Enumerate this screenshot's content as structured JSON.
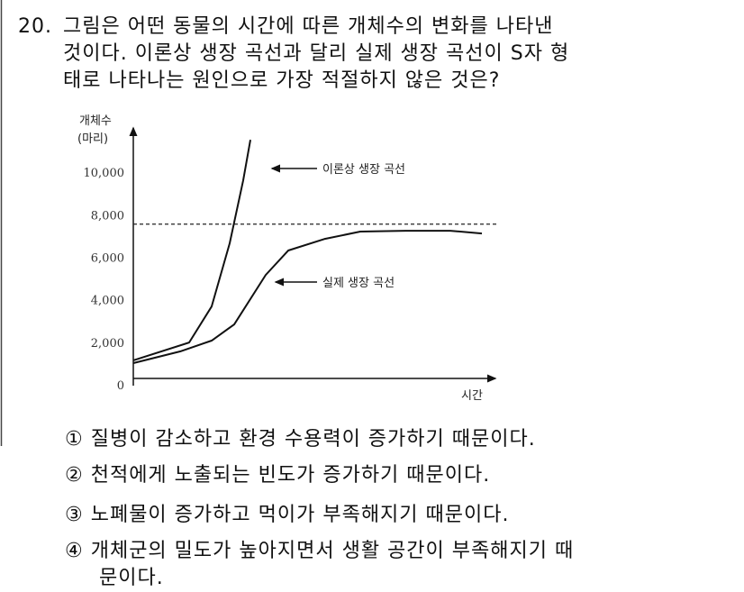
{
  "question": {
    "number": "20.",
    "lines": [
      "그림은 어떤 동물의 시간에 따른 개체수의 변화를 나타낸",
      "것이다. 이론상 생장 곡선과 달리 실제 생장 곡선이 S자 형",
      "태로 나타나는 원인으로 가장 적절하지 않은 것은?"
    ]
  },
  "chart_data": {
    "type": "line",
    "y_label": [
      "개체수",
      "(마리)"
    ],
    "x_label": "시간",
    "ylim": [
      0,
      12000
    ],
    "yticks": [
      0,
      {
        "value": 2000,
        "label": "2,000"
      },
      {
        "value": 4000,
        "label": "4,000"
      },
      {
        "value": 6000,
        "label": "6,000"
      },
      {
        "value": 8000,
        "label": "8,000"
      },
      {
        "value": 10000,
        "label": "10,000"
      }
    ],
    "xlim": [
      0,
      40
    ],
    "reference_line": 7600,
    "series": [
      {
        "name": "이론상 생장 곡선",
        "color": "#111111",
        "x": [
          0,
          6.2,
          8.7,
          10.7,
          12.2,
          13
        ],
        "values": [
          1190,
          2030,
          3730,
          6700,
          9660,
          11570
        ]
      },
      {
        "name": "실제 생장 곡선",
        "color": "#111111",
        "x": [
          0,
          5.2,
          8.7,
          11.2,
          14.7,
          17.2,
          21.2,
          25.2,
          30.2,
          35.2,
          38.7
        ],
        "values": [
          1060,
          1610,
          2120,
          2880,
          5210,
          6360,
          6900,
          7250,
          7290,
          7290,
          7160
        ]
      }
    ]
  },
  "choices": [
    {
      "lines": [
        "① 질병이 감소하고 환경 수용력이 증가하기 때문이다."
      ]
    },
    {
      "lines": [
        "② 천적에게 노출되는 빈도가 증가하기 때문이다."
      ]
    },
    {
      "lines": [
        "③ 노폐물이 증가하고 먹이가 부족해지기 때문이다."
      ]
    },
    {
      "lines": [
        "④ 개체군의 밀도가 높아지면서 생활 공간이 부족해지기 때",
        "문이다."
      ]
    }
  ]
}
